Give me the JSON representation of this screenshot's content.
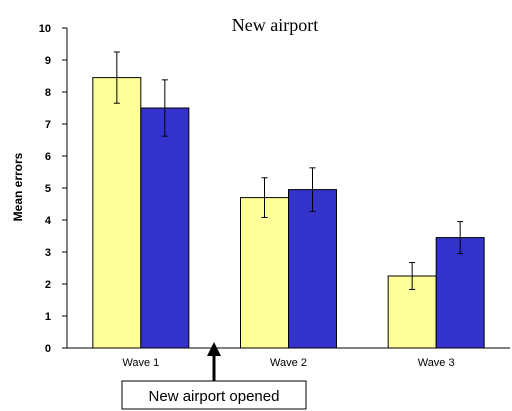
{
  "chart_data": {
    "type": "bar",
    "title": "New airport",
    "xlabel": "",
    "ylabel": "Mean errors",
    "ylim": [
      0,
      10
    ],
    "yticks": [
      0,
      1,
      2,
      3,
      4,
      5,
      6,
      7,
      8,
      9,
      10
    ],
    "categories": [
      "Wave 1",
      "Wave 2",
      "Wave 3"
    ],
    "grid": false,
    "legend": "none",
    "series": [
      {
        "color": "#ffff99",
        "values": [
          8.45,
          4.7,
          2.25
        ],
        "errors": [
          0.8,
          0.62,
          0.42
        ]
      },
      {
        "color": "#3333cc",
        "values": [
          7.5,
          4.95,
          3.45
        ],
        "errors": [
          0.88,
          0.68,
          0.5
        ]
      }
    ],
    "annotation": {
      "text": "New airport opened",
      "position": "between Wave 1 and Wave 2"
    }
  }
}
